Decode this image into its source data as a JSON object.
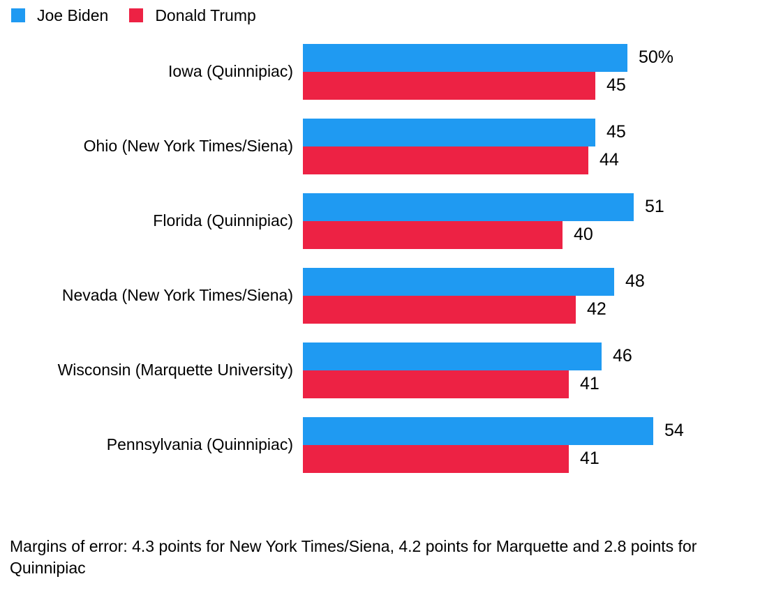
{
  "chart_data": {
    "type": "bar",
    "orientation": "horizontal",
    "title": "",
    "categories": [
      "Iowa (Quinnipiac)",
      "Ohio (New York Times/Siena)",
      "Florida (Quinnipiac)",
      "Nevada (New York Times/Siena)",
      "Wisconsin (Marquette University)",
      "Pennsylvania (Quinnipiac)"
    ],
    "series": [
      {
        "name": "Joe Biden",
        "color": "#1f9af2",
        "values": [
          50,
          45,
          51,
          48,
          46,
          54
        ],
        "value_labels": [
          "50%",
          "45",
          "51",
          "48",
          "46",
          "54"
        ]
      },
      {
        "name": "Donald Trump",
        "color": "#ed2244",
        "values": [
          45,
          44,
          40,
          42,
          41,
          41
        ],
        "value_labels": [
          "45",
          "44",
          "40",
          "42",
          "41",
          "41"
        ]
      }
    ],
    "xlim": [
      0,
      57
    ],
    "grid": false,
    "legend_position": "top-left",
    "value_unit": "%",
    "footnote": "Margins of error: 4.3 points for New York Times/Siena, 4.2 points for Marquette and 2.8 points for Quinnipiac"
  }
}
